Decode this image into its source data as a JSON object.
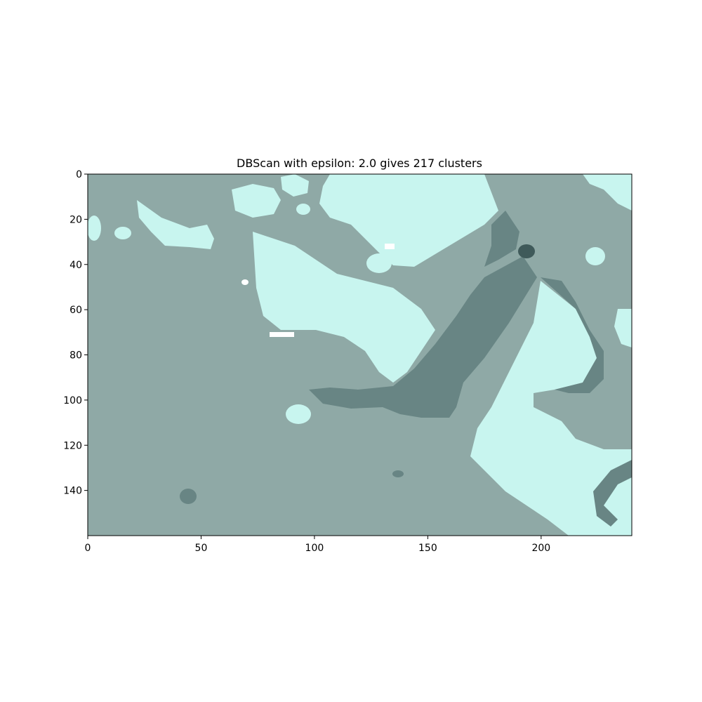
{
  "chart_data": {
    "type": "heatmap",
    "title": "DBScan with epsilon: 2.0 gives 217 clusters",
    "xlabel": "",
    "ylabel": "",
    "xlim": [
      0,
      240
    ],
    "ylim": [
      160,
      0
    ],
    "x_ticks": [
      0,
      50,
      100,
      150,
      200
    ],
    "y_ticks": [
      0,
      20,
      40,
      60,
      80,
      100,
      120,
      140
    ],
    "grid": false,
    "legend": "none",
    "colors": {
      "background_cluster": "#8fa9a6",
      "light_cluster": "#c8f5ef",
      "dark_cluster": "#688584",
      "very_dark_cluster": "#3f5a5a",
      "white_noise": "#ffffff"
    }
  }
}
